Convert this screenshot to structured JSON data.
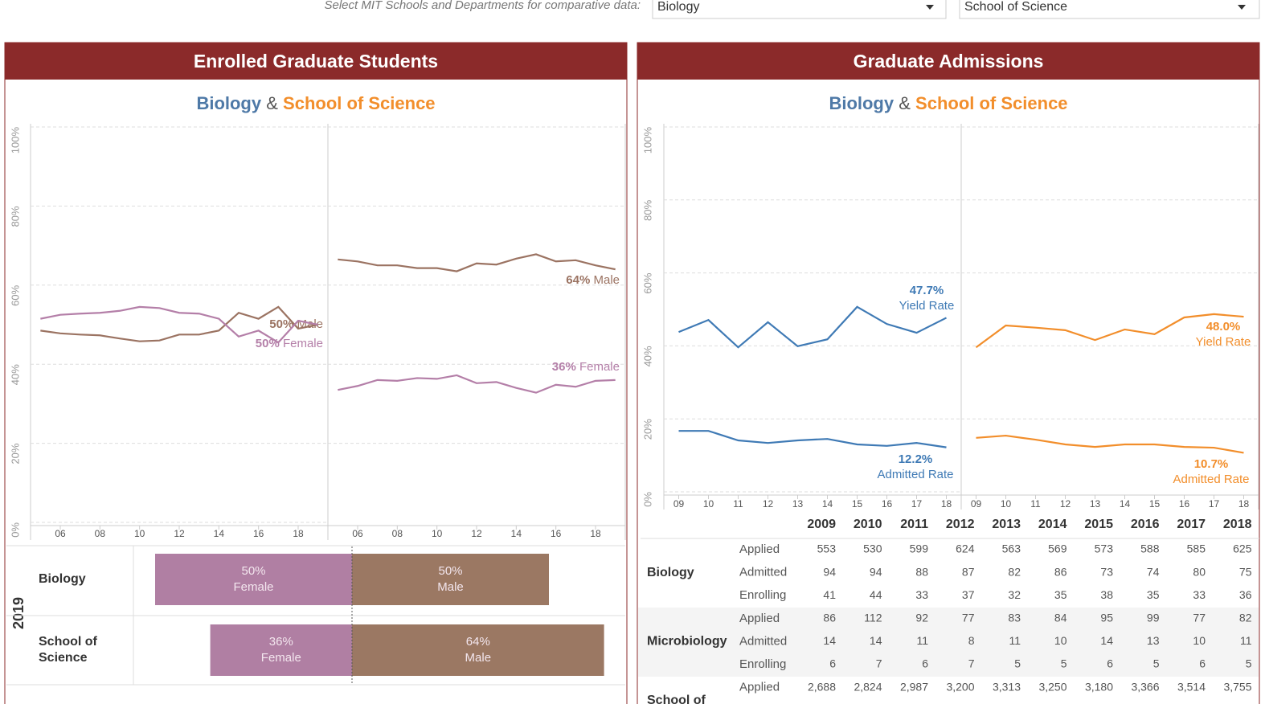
{
  "header": {
    "prompt": "Select MIT Schools and Departments for comparative data:",
    "dropdowns": [
      "Biology",
      "School of Science"
    ]
  },
  "enrolled": {
    "title": "Enrolled Graduate Students",
    "subtitle": {
      "first": "Biology",
      "joiner": "&",
      "second": "School of Science"
    }
  },
  "admissions": {
    "title": "Graduate Admissions",
    "subtitle": {
      "first": "Biology",
      "joiner": "&",
      "second": "School of Science"
    }
  },
  "chart_data": [
    {
      "type": "line",
      "x": [
        2005,
        2006,
        2007,
        2008,
        2009,
        2010,
        2011,
        2012,
        2013,
        2014,
        2015,
        2016,
        2017,
        2018,
        2019
      ],
      "xlim": [
        2004.5,
        2019.5
      ],
      "xticks": [
        {
          "value": 2006,
          "label": "06"
        },
        {
          "value": 2008,
          "label": "08"
        },
        {
          "value": 2010,
          "label": "10"
        },
        {
          "value": 2012,
          "label": "12"
        },
        {
          "value": 2014,
          "label": "14"
        },
        {
          "value": 2016,
          "label": "16"
        },
        {
          "value": 2018,
          "label": "18"
        }
      ],
      "ylim": [
        0,
        100
      ],
      "yticks": [
        {
          "value": 0,
          "label": "0%"
        },
        {
          "value": 20,
          "label": "20%"
        },
        {
          "value": 40,
          "label": "40%"
        },
        {
          "value": 60,
          "label": "60%"
        },
        {
          "value": 80,
          "label": "80%"
        },
        {
          "value": 100,
          "label": "100%"
        }
      ],
      "grid": true,
      "series": [
        {
          "name": "Male",
          "color": "#9b7362",
          "end_label": "50%",
          "values": [
            48.5,
            47.8,
            47.5,
            47.3,
            46.5,
            45.8,
            46,
            47.5,
            47.5,
            48.5,
            53,
            51.5,
            54.5,
            49,
            50
          ]
        },
        {
          "name": "Female",
          "color": "#b47fa8",
          "end_label": "50%",
          "values": [
            51.5,
            52.5,
            52.8,
            53,
            53.5,
            54.5,
            54.2,
            53,
            52.8,
            51.5,
            47,
            48.5,
            45.5,
            51,
            50
          ]
        }
      ]
    },
    {
      "type": "line",
      "x": [
        2005,
        2006,
        2007,
        2008,
        2009,
        2010,
        2011,
        2012,
        2013,
        2014,
        2015,
        2016,
        2017,
        2018,
        2019
      ],
      "xlim": [
        2004.5,
        2019.5
      ],
      "xticks": [
        {
          "value": 2006,
          "label": "06"
        },
        {
          "value": 2008,
          "label": "08"
        },
        {
          "value": 2010,
          "label": "10"
        },
        {
          "value": 2012,
          "label": "12"
        },
        {
          "value": 2014,
          "label": "14"
        },
        {
          "value": 2016,
          "label": "16"
        },
        {
          "value": 2018,
          "label": "18"
        }
      ],
      "ylim": [
        0,
        100
      ],
      "yticks": [
        20,
        40,
        60,
        80,
        100
      ],
      "grid": true,
      "series": [
        {
          "name": "Male",
          "color": "#9b7362",
          "end_label": "64%",
          "values": [
            66.5,
            66,
            65,
            65,
            64.3,
            64.3,
            63.5,
            65.5,
            65.2,
            66.7,
            67.8,
            66,
            66.3,
            65,
            64
          ]
        },
        {
          "name": "Female",
          "color": "#b47fa8",
          "end_label": "36%",
          "values": [
            33.5,
            34.5,
            36,
            35.8,
            36.5,
            36.3,
            37.2,
            35.2,
            35.5,
            34,
            32.8,
            34.8,
            34.3,
            35.8,
            36
          ]
        }
      ]
    },
    {
      "type": "diverging-bar",
      "title": "2019",
      "categories": [
        "Biology",
        "School of Science"
      ],
      "series": [
        {
          "name": "Female",
          "color": "#b07fa3",
          "values": [
            50,
            36
          ],
          "value_labels": [
            "50%",
            "36%"
          ]
        },
        {
          "name": "Male",
          "color": "#9b7863",
          "values": [
            50,
            64
          ],
          "value_labels": [
            "50%",
            "64%"
          ]
        }
      ]
    },
    {
      "type": "line",
      "x": [
        2009,
        2010,
        2011,
        2012,
        2013,
        2014,
        2015,
        2016,
        2017,
        2018
      ],
      "xlim": [
        2008.5,
        2018.5
      ],
      "xticks": [
        {
          "value": 2009,
          "label": "09"
        },
        {
          "value": 2010,
          "label": "10"
        },
        {
          "value": 2011,
          "label": "11"
        },
        {
          "value": 2012,
          "label": "12"
        },
        {
          "value": 2013,
          "label": "13"
        },
        {
          "value": 2014,
          "label": "14"
        },
        {
          "value": 2015,
          "label": "15"
        },
        {
          "value": 2016,
          "label": "16"
        },
        {
          "value": 2017,
          "label": "17"
        },
        {
          "value": 2018,
          "label": "18"
        }
      ],
      "ylim": [
        0,
        100
      ],
      "yticks": [
        {
          "value": 0,
          "label": "0%"
        },
        {
          "value": 20,
          "label": "20%"
        },
        {
          "value": 40,
          "label": "40%"
        },
        {
          "value": 60,
          "label": "60%"
        },
        {
          "value": 80,
          "label": "80%"
        },
        {
          "value": 100,
          "label": "100%"
        }
      ],
      "grid": true,
      "series": [
        {
          "name": "Yield Rate",
          "color": "#3f7ab5",
          "end_label": "47.7%",
          "values": [
            43.8,
            47.1,
            39.6,
            46.5,
            39.9,
            41.8,
            50.7,
            46,
            43.6,
            47.7
          ]
        },
        {
          "name": "Admitted Rate",
          "color": "#3f7ab5",
          "end_label": "12.2%",
          "values": [
            16.7,
            16.7,
            14.1,
            13.4,
            14.1,
            14.5,
            13,
            12.6,
            13.4,
            12.2
          ]
        }
      ]
    },
    {
      "type": "line",
      "x": [
        2009,
        2010,
        2011,
        2012,
        2013,
        2014,
        2015,
        2016,
        2017,
        2018
      ],
      "xlim": [
        2008.5,
        2018.5
      ],
      "xticks": [
        {
          "value": 2009,
          "label": "09"
        },
        {
          "value": 2010,
          "label": "10"
        },
        {
          "value": 2011,
          "label": "11"
        },
        {
          "value": 2012,
          "label": "12"
        },
        {
          "value": 2013,
          "label": "13"
        },
        {
          "value": 2014,
          "label": "14"
        },
        {
          "value": 2015,
          "label": "15"
        },
        {
          "value": 2016,
          "label": "16"
        },
        {
          "value": 2017,
          "label": "17"
        },
        {
          "value": 2018,
          "label": "18"
        }
      ],
      "ylim": [
        0,
        100
      ],
      "yticks": [
        20,
        40,
        60,
        80,
        100
      ],
      "grid": true,
      "series": [
        {
          "name": "Yield Rate",
          "color": "#f28e2b",
          "end_label": "48.0%",
          "values": [
            39.6,
            45.6,
            45,
            44.3,
            41.6,
            44.5,
            43.2,
            47.8,
            48.7,
            48
          ]
        },
        {
          "name": "Admitted Rate",
          "color": "#f28e2b",
          "end_label": "10.7%",
          "values": [
            14.8,
            15.4,
            14.3,
            13,
            12.3,
            13,
            13,
            12.3,
            12.1,
            10.7
          ]
        }
      ]
    }
  ],
  "table": {
    "columns": [
      2009,
      2010,
      2011,
      2012,
      2013,
      2014,
      2015,
      2016,
      2017,
      2018
    ],
    "groups": [
      {
        "name": "Biology",
        "rows": [
          {
            "measure": "Applied",
            "values": [
              553,
              530,
              599,
              624,
              563,
              569,
              573,
              588,
              585,
              625
            ]
          },
          {
            "measure": "Admitted",
            "values": [
              94,
              94,
              88,
              87,
              82,
              86,
              73,
              74,
              80,
              75
            ]
          },
          {
            "measure": "Enrolling",
            "values": [
              41,
              44,
              33,
              37,
              32,
              35,
              38,
              35,
              33,
              36
            ]
          }
        ]
      },
      {
        "name": "Microbiology",
        "rows": [
          {
            "measure": "Applied",
            "values": [
              86,
              112,
              92,
              77,
              83,
              84,
              95,
              99,
              77,
              82
            ]
          },
          {
            "measure": "Admitted",
            "values": [
              14,
              14,
              11,
              8,
              11,
              10,
              14,
              13,
              10,
              11
            ]
          },
          {
            "measure": "Enrolling",
            "values": [
              6,
              7,
              6,
              7,
              5,
              5,
              6,
              5,
              6,
              5
            ]
          }
        ]
      },
      {
        "name": "School of",
        "rows": [
          {
            "measure": "Applied",
            "values": [
              "2,688",
              "2,824",
              "2,987",
              "3,200",
              "3,313",
              "3,250",
              "3,180",
              "3,366",
              "3,514",
              "3,755"
            ]
          }
        ]
      }
    ]
  }
}
